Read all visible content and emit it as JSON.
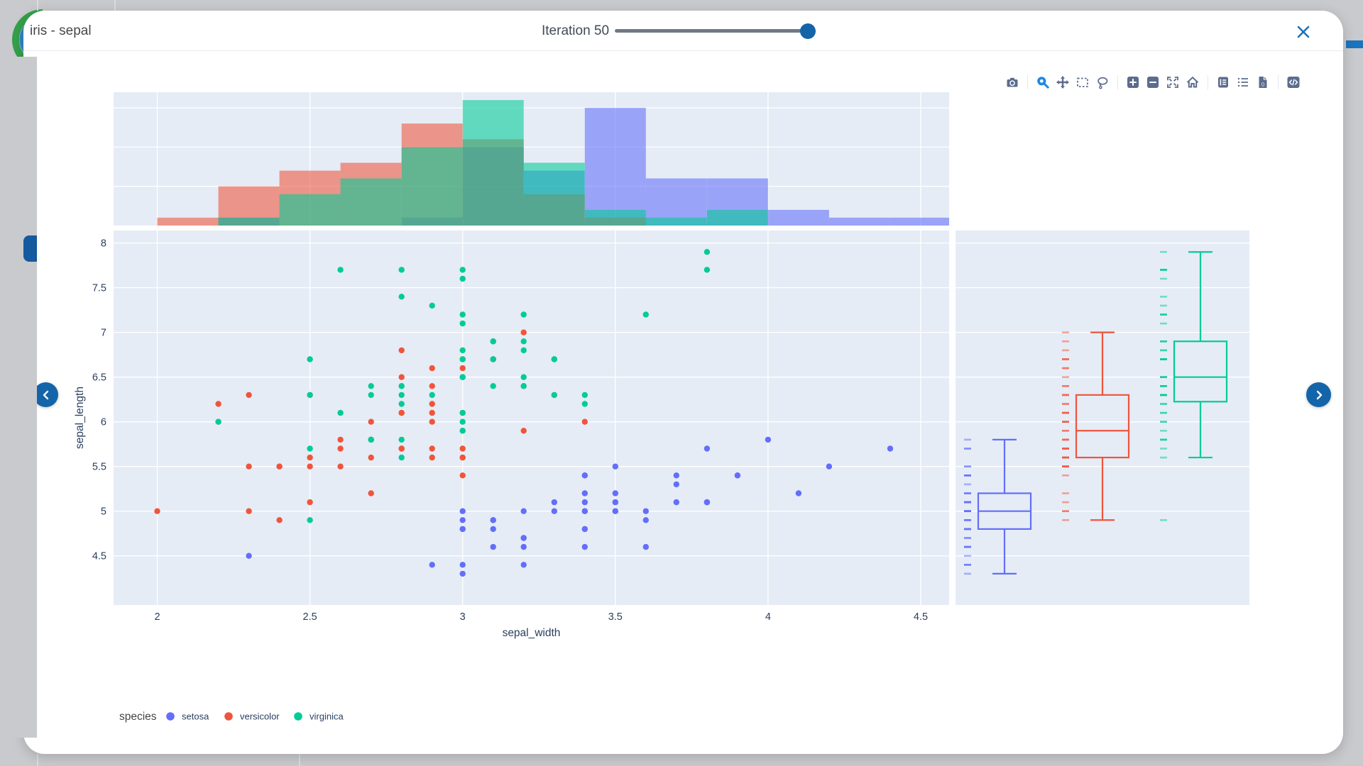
{
  "window": {
    "title": "iris - sepal",
    "close_label": "close"
  },
  "slider": {
    "label": "Iteration 50",
    "value": 50,
    "position_pct": 100
  },
  "toolbar": {
    "groups": [
      [
        {
          "name": "camera",
          "filled": false
        }
      ],
      [
        {
          "name": "zoom",
          "filled": false,
          "active": true
        },
        {
          "name": "pan",
          "filled": false
        },
        {
          "name": "box-select",
          "filled": false
        },
        {
          "name": "lasso",
          "filled": false
        }
      ],
      [
        {
          "name": "zoom-in",
          "filled": true
        },
        {
          "name": "zoom-out",
          "filled": true
        },
        {
          "name": "autoscale",
          "filled": false
        },
        {
          "name": "reset-home",
          "filled": false
        }
      ],
      [
        {
          "name": "journal",
          "filled": true
        },
        {
          "name": "list",
          "filled": false
        },
        {
          "name": "data-file",
          "filled": true
        }
      ],
      [
        {
          "name": "code",
          "filled": true
        }
      ]
    ],
    "icon_color": "#5b6c8e",
    "active_color": "#1e88e5"
  },
  "nav": {
    "prev": "previous-plot",
    "next": "next-plot"
  },
  "chart_data": {
    "type": "scatter",
    "xlabel": "sepal_width",
    "ylabel": "sepal_length",
    "plot_bgcolor": "#e5ecf6",
    "gridcolor": "#ffffff",
    "tick_color": "#2a3f5f",
    "x_range": [
      1.857,
      4.593
    ],
    "y_range": [
      3.95,
      8.14
    ],
    "x_ticks": [
      2,
      2.5,
      3,
      3.5,
      4,
      4.5
    ],
    "y_ticks": [
      4.5,
      5,
      5.5,
      6,
      6.5,
      7,
      7.5,
      8
    ],
    "marginal_top": {
      "type": "histogram",
      "bin_start": 2.0,
      "bin_width": 0.2,
      "y_range": [
        0,
        17
      ],
      "gridlines": [
        5,
        10,
        15
      ],
      "bar_opacity": 0.58
    },
    "marginal_right": {
      "type": "box",
      "points": "all"
    },
    "legend": {
      "title": "species",
      "position": "bottom",
      "items": [
        "setosa",
        "versicolor",
        "virginica"
      ]
    },
    "series": [
      {
        "name": "setosa",
        "color": "#636efa",
        "x": [
          3.5,
          3.0,
          3.2,
          3.1,
          3.6,
          3.9,
          3.4,
          3.4,
          2.9,
          3.1,
          3.7,
          3.4,
          3.0,
          3.0,
          4.0,
          4.4,
          3.9,
          3.5,
          3.8,
          3.8,
          3.4,
          3.7,
          3.6,
          3.3,
          3.4,
          3.0,
          3.4,
          3.5,
          3.4,
          3.2,
          3.1,
          3.4,
          4.1,
          4.2,
          3.1,
          3.2,
          3.5,
          3.6,
          3.0,
          3.4,
          3.5,
          2.3,
          3.2,
          3.5,
          3.8,
          3.0,
          3.8,
          3.2,
          3.7,
          3.3
        ],
        "y": [
          5.1,
          4.9,
          4.7,
          4.6,
          5.0,
          5.4,
          4.6,
          5.0,
          4.4,
          4.9,
          5.4,
          4.8,
          4.8,
          4.3,
          5.8,
          5.7,
          5.4,
          5.1,
          5.7,
          5.1,
          5.4,
          5.1,
          4.6,
          5.1,
          4.8,
          5.0,
          5.0,
          5.2,
          5.2,
          4.7,
          4.8,
          5.4,
          5.2,
          5.5,
          4.9,
          5.0,
          5.5,
          4.9,
          4.4,
          5.1,
          5.0,
          4.5,
          4.4,
          5.0,
          5.1,
          4.8,
          5.1,
          4.6,
          5.3,
          5.0
        ],
        "box": {
          "lo": 4.3,
          "q1": 4.8,
          "med": 5.0,
          "q3": 5.2,
          "hi": 5.8,
          "outliers": []
        }
      },
      {
        "name": "versicolor",
        "color": "#ef553b",
        "x": [
          3.2,
          3.2,
          3.1,
          2.3,
          2.8,
          2.8,
          3.3,
          2.4,
          2.9,
          2.7,
          2.0,
          3.0,
          2.2,
          2.9,
          2.9,
          3.1,
          3.0,
          2.7,
          2.2,
          2.5,
          3.2,
          2.8,
          2.5,
          2.8,
          2.9,
          3.0,
          2.8,
          3.0,
          2.9,
          2.6,
          2.4,
          2.4,
          2.7,
          2.7,
          3.0,
          3.4,
          3.1,
          2.3,
          3.0,
          2.5,
          2.6,
          3.0,
          2.6,
          2.3,
          2.7,
          3.0,
          2.9,
          2.9,
          2.5,
          2.8
        ],
        "y": [
          7.0,
          6.4,
          6.9,
          5.5,
          6.5,
          5.7,
          6.3,
          4.9,
          6.6,
          5.2,
          5.0,
          5.9,
          6.0,
          6.1,
          5.6,
          6.7,
          5.6,
          5.8,
          6.2,
          5.6,
          5.9,
          6.1,
          6.3,
          6.1,
          6.4,
          6.6,
          6.8,
          6.7,
          6.0,
          5.7,
          5.5,
          5.5,
          5.8,
          6.0,
          5.4,
          6.0,
          6.7,
          6.3,
          5.6,
          5.5,
          5.5,
          6.1,
          5.8,
          5.0,
          5.6,
          5.7,
          5.7,
          6.2,
          5.1,
          5.7
        ],
        "box": {
          "lo": 4.9,
          "q1": 5.6,
          "med": 5.9,
          "q3": 6.3,
          "hi": 7.0,
          "outliers": []
        }
      },
      {
        "name": "virginica",
        "color": "#00cc96",
        "x": [
          3.3,
          2.7,
          3.0,
          2.9,
          3.0,
          3.0,
          2.5,
          2.9,
          2.5,
          3.6,
          3.2,
          2.7,
          3.0,
          2.5,
          2.8,
          3.2,
          3.0,
          3.8,
          2.6,
          2.2,
          3.2,
          2.8,
          2.8,
          2.7,
          3.3,
          3.2,
          2.8,
          3.0,
          2.8,
          3.0,
          2.8,
          3.8,
          2.8,
          2.8,
          2.6,
          3.0,
          3.4,
          3.1,
          3.0,
          3.1,
          3.1,
          3.1,
          2.7,
          3.2,
          3.3,
          3.0,
          2.5,
          3.0,
          3.4,
          3.0
        ],
        "y": [
          6.3,
          5.8,
          7.1,
          6.3,
          6.5,
          7.6,
          4.9,
          7.3,
          6.7,
          7.2,
          6.5,
          6.4,
          6.8,
          5.7,
          5.8,
          6.4,
          6.5,
          7.7,
          7.7,
          6.0,
          6.9,
          5.6,
          7.7,
          6.3,
          6.7,
          7.2,
          6.2,
          6.1,
          6.4,
          7.2,
          7.4,
          7.9,
          6.4,
          6.3,
          6.1,
          7.7,
          6.3,
          6.4,
          6.0,
          6.9,
          6.7,
          6.9,
          5.8,
          6.8,
          6.7,
          6.7,
          6.3,
          6.5,
          6.2,
          5.9
        ],
        "box": {
          "lo": 5.6,
          "q1": 6.225,
          "med": 6.5,
          "q3": 6.9,
          "hi": 7.9,
          "outliers": [
            4.9
          ]
        }
      }
    ]
  }
}
